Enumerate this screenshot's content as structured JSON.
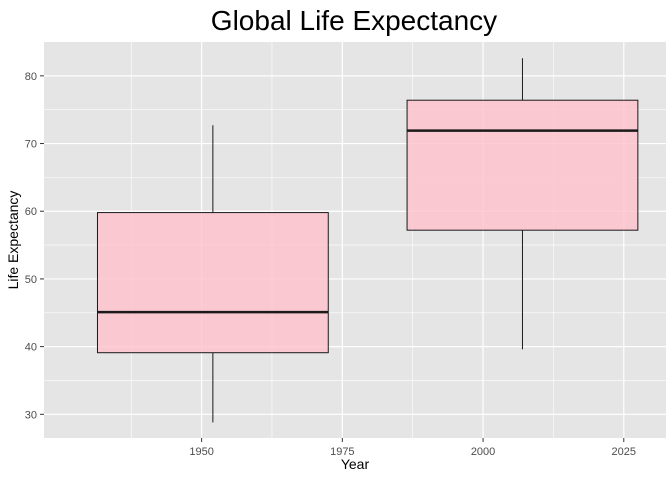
{
  "chart_data": {
    "type": "box",
    "title": "Global Life Expectancy",
    "xlabel": "Year",
    "ylabel": "Life Expectancy",
    "xlim": [
      1922,
      2032.5
    ],
    "ylim": [
      26.5,
      85
    ],
    "x_ticks": [
      1950,
      1975,
      2000,
      2025
    ],
    "y_ticks": [
      30,
      40,
      50,
      60,
      70,
      80
    ],
    "grid": true,
    "legend": "none",
    "boxes": [
      {
        "x_center": 1952,
        "x_start": 1931.5,
        "x_end": 1972.5,
        "whisker_low": 28.8,
        "q1": 39.1,
        "median": 45.1,
        "q3": 59.8,
        "whisker_high": 72.7
      },
      {
        "x_center": 2007,
        "x_start": 1986.5,
        "x_end": 2027.5,
        "whisker_low": 39.6,
        "q1": 57.2,
        "median": 71.9,
        "q3": 76.4,
        "whisker_high": 82.6
      }
    ],
    "colors": {
      "fill": "#ffc0cb",
      "outline": "#1a1a1a",
      "panel": "#e5e5e5",
      "grid": "#ffffff"
    }
  }
}
